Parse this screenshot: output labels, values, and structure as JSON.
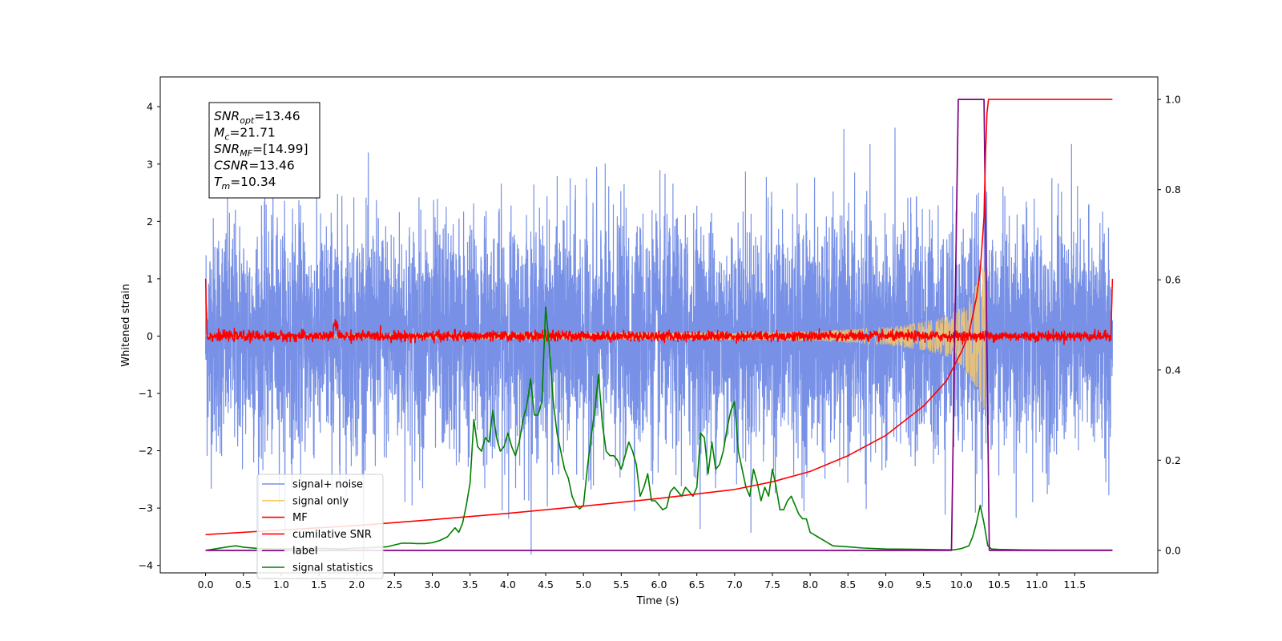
{
  "chart_data": {
    "type": "line",
    "title": "",
    "xlabel": "Time (s)",
    "ylabel": "Whitened strain",
    "xlim": [
      -0.6,
      12.6
    ],
    "ylim": [
      -4.13,
      4.52
    ],
    "y2lim": [
      -0.05,
      1.05
    ],
    "x_ticks": [
      "0.0",
      "0.5",
      "1.0",
      "1.5",
      "2.0",
      "2.5",
      "3.0",
      "3.5",
      "4.0",
      "4.5",
      "5.0",
      "5.5",
      "6.0",
      "6.5",
      "7.0",
      "7.5",
      "8.0",
      "8.5",
      "9.0",
      "9.5",
      "10.0",
      "10.5",
      "11.0",
      "11.5"
    ],
    "y_ticks": [
      "4",
      "3",
      "2",
      "1",
      "0",
      "−1",
      "−2",
      "−3",
      "−4"
    ],
    "y_tick_values": [
      4,
      3,
      2,
      1,
      0,
      -1,
      -2,
      -3,
      -4
    ],
    "y2_ticks": [
      "1.0",
      "0.8",
      "0.6",
      "0.4",
      "0.2",
      "0.0"
    ],
    "y2_tick_values": [
      1.0,
      0.8,
      0.6,
      0.4,
      0.2,
      0.0
    ],
    "grid": false,
    "legend_position": "lower-left",
    "annotation": {
      "lines": [
        {
          "base": "SNR",
          "sub": "opt",
          "value": "=13.46"
        },
        {
          "base": "M",
          "sub": "c",
          "value": "=21.71"
        },
        {
          "base": "SNR",
          "sub": "MF",
          "value": "=[14.99]"
        },
        {
          "base": "CSNR",
          "sub": "",
          "value": "=13.46"
        },
        {
          "base": "T",
          "sub": "m",
          "value": "=10.34"
        }
      ]
    },
    "series": [
      {
        "name": "signal+ noise",
        "color": "#7891e6",
        "axis": "left",
        "kind": "noise",
        "x_range": [
          0.0,
          12.0
        ],
        "amplitude_typical": 1.3,
        "peak": 3.9
      },
      {
        "name": "signal only",
        "color": "#f5c96b",
        "axis": "left",
        "kind": "chirp",
        "x_range": [
          0.0,
          10.34
        ],
        "envelope_x": [
          0.0,
          8.0,
          9.0,
          9.5,
          9.8,
          10.0,
          10.2,
          10.3,
          10.34
        ],
        "envelope_y": [
          0.02,
          0.08,
          0.15,
          0.25,
          0.35,
          0.5,
          0.9,
          1.3,
          2.0
        ]
      },
      {
        "name": "MF",
        "color": "#ff0000",
        "axis": "left",
        "kind": "matched-filter",
        "x_range": [
          0.0,
          12.0
        ],
        "baseline": 0.0,
        "edge_value": 1.0
      },
      {
        "name": "cumilative SNR",
        "color": "#ff0000",
        "axis": "right",
        "x": [
          0.0,
          1.0,
          2.0,
          3.0,
          4.0,
          5.0,
          6.0,
          7.0,
          7.5,
          8.0,
          8.5,
          9.0,
          9.5,
          9.8,
          10.0,
          10.1,
          10.2,
          10.25,
          10.3,
          10.32,
          10.34,
          10.36,
          10.5,
          11.0,
          12.0
        ],
        "y": [
          0.035,
          0.045,
          0.055,
          0.068,
          0.082,
          0.098,
          0.115,
          0.135,
          0.152,
          0.175,
          0.21,
          0.255,
          0.32,
          0.375,
          0.44,
          0.48,
          0.56,
          0.62,
          0.74,
          0.88,
          0.97,
          1.0,
          1.0,
          1.0,
          1.0
        ]
      },
      {
        "name": "label",
        "color": "#800080",
        "axis": "right",
        "x": [
          0.0,
          9.87,
          9.96,
          10.3,
          10.37,
          12.0
        ],
        "y": [
          0.0,
          0.0,
          1.0,
          1.0,
          0.0,
          0.0
        ]
      },
      {
        "name": "signal statistics",
        "color": "#008000",
        "axis": "right",
        "x": [
          0.0,
          0.3,
          0.4,
          0.5,
          0.7,
          1.0,
          1.3,
          1.6,
          1.8,
          2.0,
          2.2,
          2.4,
          2.5,
          2.6,
          2.7,
          2.8,
          2.9,
          3.0,
          3.1,
          3.2,
          3.3,
          3.35,
          3.4,
          3.45,
          3.5,
          3.55,
          3.6,
          3.65,
          3.7,
          3.75,
          3.8,
          3.85,
          3.9,
          3.95,
          4.0,
          4.05,
          4.1,
          4.15,
          4.2,
          4.25,
          4.3,
          4.35,
          4.4,
          4.45,
          4.5,
          4.55,
          4.6,
          4.65,
          4.7,
          4.75,
          4.8,
          4.85,
          4.9,
          4.95,
          5.0,
          5.05,
          5.1,
          5.15,
          5.2,
          5.25,
          5.3,
          5.35,
          5.4,
          5.45,
          5.5,
          5.55,
          5.6,
          5.65,
          5.7,
          5.75,
          5.8,
          5.85,
          5.9,
          5.95,
          6.0,
          6.05,
          6.1,
          6.15,
          6.2,
          6.25,
          6.3,
          6.35,
          6.4,
          6.45,
          6.5,
          6.55,
          6.6,
          6.65,
          6.7,
          6.75,
          6.8,
          6.85,
          6.9,
          6.95,
          7.0,
          7.05,
          7.1,
          7.15,
          7.2,
          7.25,
          7.3,
          7.35,
          7.4,
          7.45,
          7.5,
          7.55,
          7.6,
          7.65,
          7.7,
          7.75,
          7.8,
          7.85,
          7.9,
          7.95,
          8.0,
          8.1,
          8.2,
          8.3,
          8.5,
          8.7,
          9.0,
          9.5,
          9.9,
          10.0,
          10.1,
          10.15,
          10.2,
          10.25,
          10.3,
          10.35,
          10.4,
          10.5,
          10.8,
          11.2,
          12.0
        ],
        "y": [
          0.0,
          0.008,
          0.01,
          0.007,
          0.004,
          0.003,
          0.005,
          0.004,
          0.003,
          0.005,
          0.006,
          0.008,
          0.012,
          0.016,
          0.016,
          0.015,
          0.015,
          0.017,
          0.022,
          0.03,
          0.05,
          0.04,
          0.06,
          0.1,
          0.15,
          0.29,
          0.23,
          0.22,
          0.25,
          0.24,
          0.31,
          0.25,
          0.22,
          0.23,
          0.26,
          0.23,
          0.21,
          0.24,
          0.29,
          0.32,
          0.38,
          0.3,
          0.3,
          0.33,
          0.54,
          0.45,
          0.33,
          0.26,
          0.22,
          0.18,
          0.16,
          0.12,
          0.1,
          0.092,
          0.1,
          0.18,
          0.25,
          0.31,
          0.39,
          0.28,
          0.22,
          0.21,
          0.21,
          0.2,
          0.18,
          0.21,
          0.24,
          0.22,
          0.19,
          0.12,
          0.14,
          0.17,
          0.11,
          0.11,
          0.1,
          0.09,
          0.095,
          0.13,
          0.14,
          0.13,
          0.12,
          0.14,
          0.13,
          0.12,
          0.14,
          0.26,
          0.25,
          0.17,
          0.24,
          0.18,
          0.19,
          0.22,
          0.27,
          0.31,
          0.33,
          0.22,
          0.18,
          0.14,
          0.12,
          0.18,
          0.15,
          0.11,
          0.14,
          0.12,
          0.18,
          0.14,
          0.09,
          0.09,
          0.11,
          0.12,
          0.1,
          0.08,
          0.07,
          0.07,
          0.04,
          0.03,
          0.02,
          0.01,
          0.008,
          0.005,
          0.003,
          0.002,
          0.001,
          0.004,
          0.01,
          0.03,
          0.06,
          0.1,
          0.06,
          0.01,
          0.003,
          0.002,
          0.001,
          0.0005,
          0.0005
        ]
      }
    ]
  },
  "legend": [
    {
      "label": "signal+ noise",
      "color": "#7891e6"
    },
    {
      "label": "signal only",
      "color": "#f5c96b"
    },
    {
      "label": "MF",
      "color": "#ff0000"
    },
    {
      "label": "cumilative SNR",
      "color": "#ff0000"
    },
    {
      "label": "label",
      "color": "#800080"
    },
    {
      "label": "signal statistics",
      "color": "#008000"
    }
  ]
}
